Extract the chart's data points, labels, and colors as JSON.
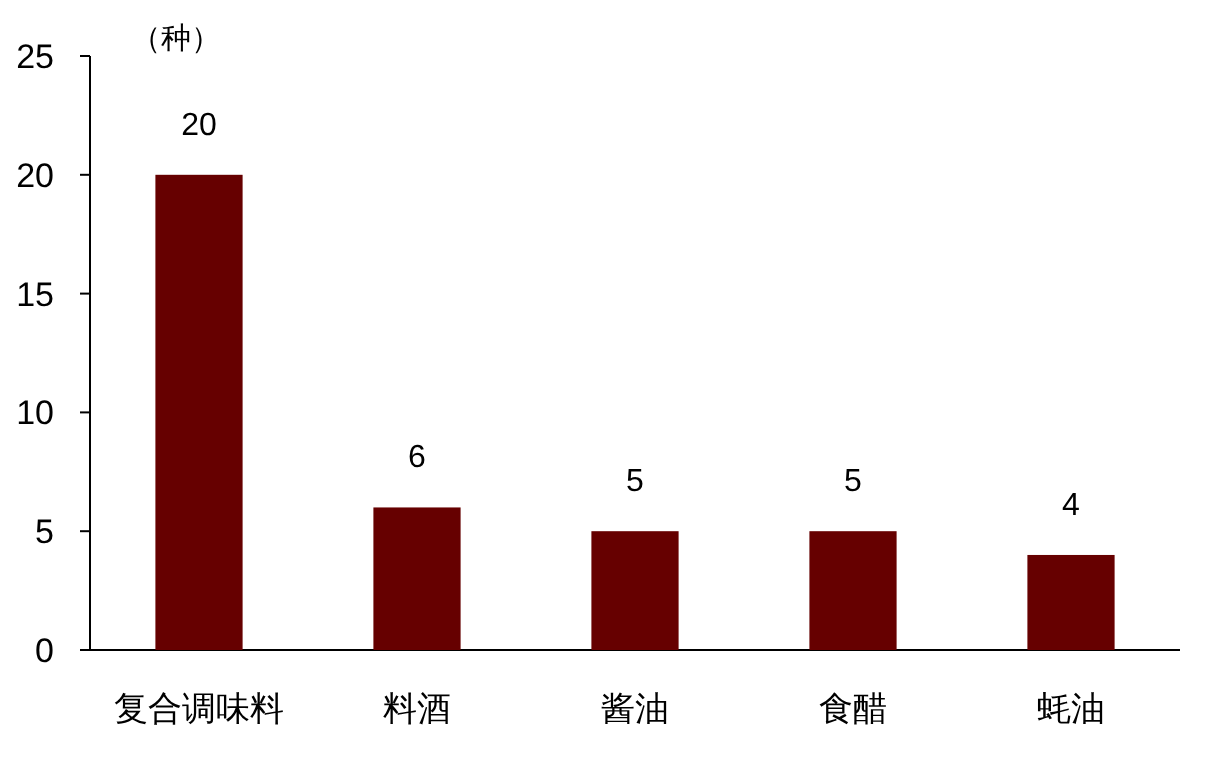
{
  "chart_data": {
    "type": "bar",
    "ylabel": "（种）",
    "categories": [
      "复合调味料",
      "料酒",
      "酱油",
      "食醋",
      "蚝油"
    ],
    "values": [
      20,
      6,
      5,
      5,
      4
    ],
    "color": "#660000",
    "ylim": [
      0,
      25
    ],
    "yticks": [
      0,
      5,
      10,
      15,
      20,
      25
    ],
    "data_labels": true,
    "grid": false
  }
}
